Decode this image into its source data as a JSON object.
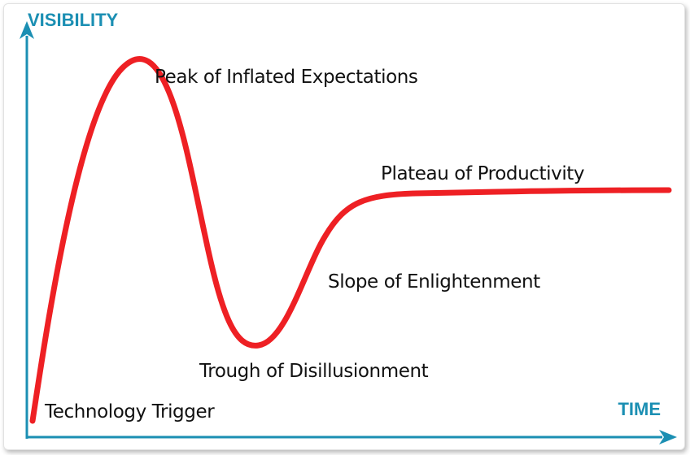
{
  "axes": {
    "y_title": "VISIBILITY",
    "x_title": "TIME",
    "color": "#1b8fb3"
  },
  "curve": {
    "color": "#ee2024"
  },
  "text_color": "#111111",
  "phases": [
    {
      "label": "Technology Trigger"
    },
    {
      "label": "Peak of Inflated Expectations"
    },
    {
      "label": "Trough of Disillusionment"
    },
    {
      "label": "Slope of Enlightenment"
    },
    {
      "label": "Plateau of Productivity"
    }
  ]
}
